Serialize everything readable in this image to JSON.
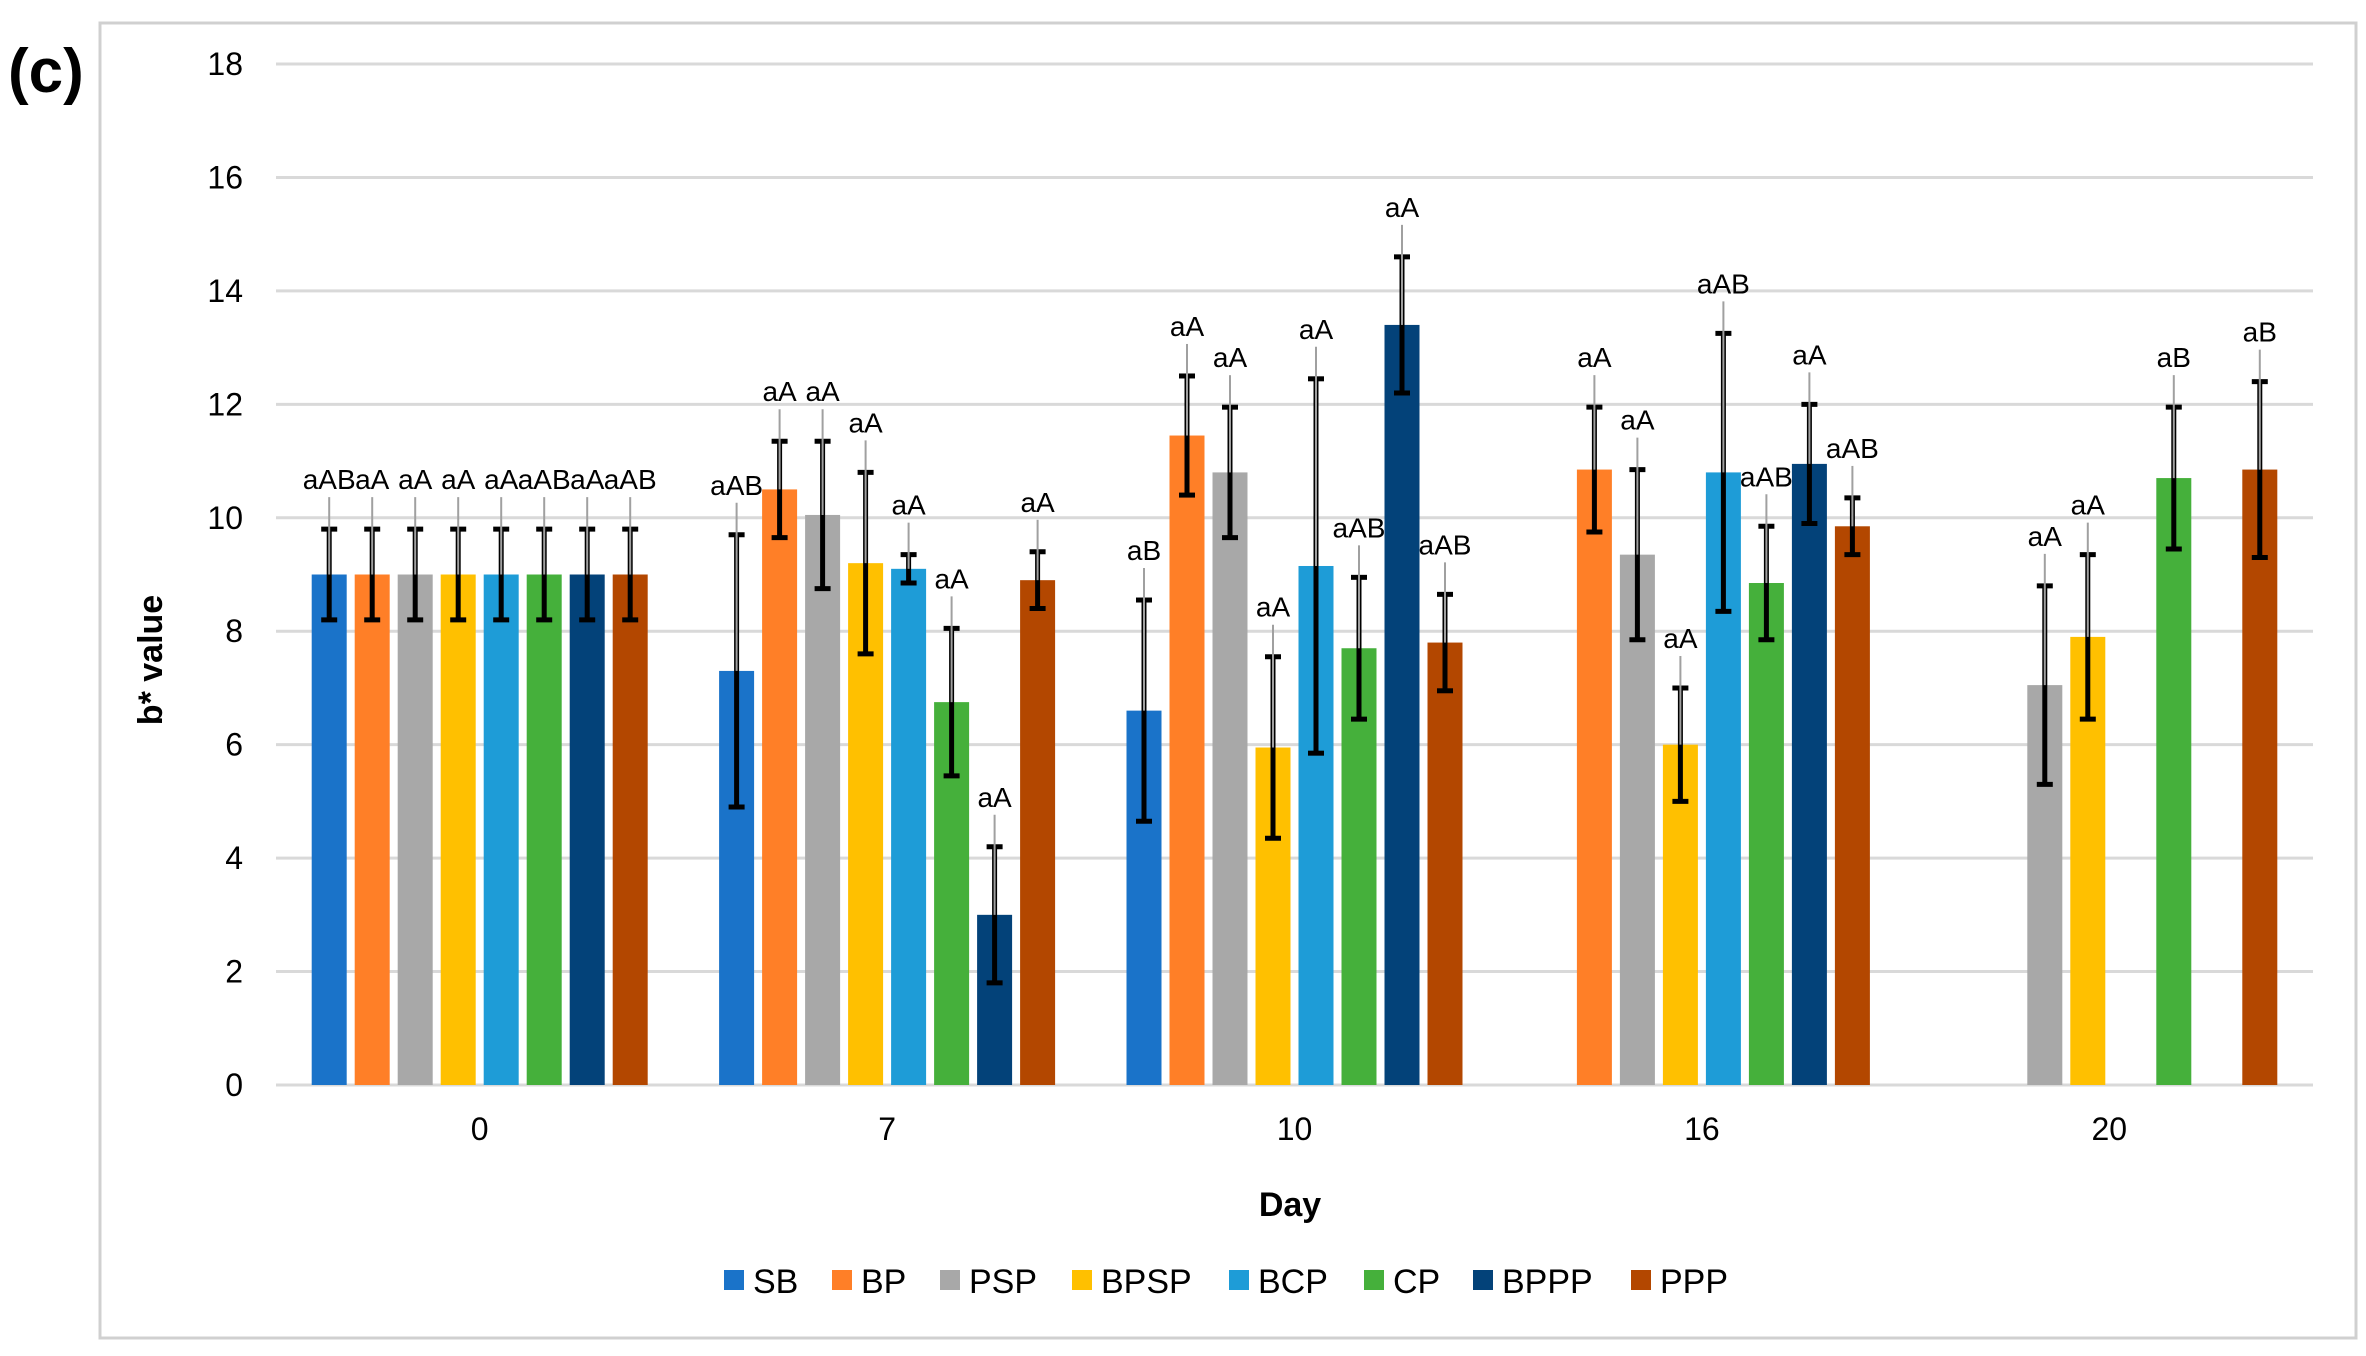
{
  "panel_label": "(c)",
  "chart_data": {
    "type": "bar",
    "title": "",
    "xlabel": "Day",
    "ylabel": "b* value",
    "ylim": [
      0,
      18
    ],
    "yticks": [
      0,
      2,
      4,
      6,
      8,
      10,
      12,
      14,
      16,
      18
    ],
    "grid": true,
    "legend_position": "bottom",
    "categories": [
      "0",
      "7",
      "10",
      "16",
      "20"
    ],
    "series": [
      {
        "name": "SB",
        "color": "#1a73c9",
        "values": [
          9.0,
          7.3,
          6.6,
          null,
          null
        ],
        "errors": [
          0.8,
          2.4,
          1.95,
          null,
          null
        ],
        "labels": [
          "aAB",
          "aAB",
          "aB",
          null,
          null
        ]
      },
      {
        "name": "BP",
        "color": "#ff7f27",
        "values": [
          9.0,
          10.5,
          11.45,
          10.85,
          null
        ],
        "errors": [
          0.8,
          0.85,
          1.05,
          1.1,
          null
        ],
        "labels": [
          "aA",
          "aA",
          "aA",
          "aA",
          null
        ]
      },
      {
        "name": "PSP",
        "color": "#a8a8a8",
        "values": [
          9.0,
          10.05,
          10.8,
          9.35,
          7.05
        ],
        "errors": [
          0.8,
          1.3,
          1.15,
          1.5,
          1.75
        ],
        "labels": [
          "aA",
          "aA",
          "aA",
          "aA",
          "aA"
        ]
      },
      {
        "name": "BPSP",
        "color": "#ffc000",
        "values": [
          9.0,
          9.2,
          5.95,
          6.0,
          7.9
        ],
        "errors": [
          0.8,
          1.6,
          1.6,
          1.0,
          1.45
        ],
        "labels": [
          "aA",
          "aA",
          "aA",
          "aA",
          "aA"
        ]
      },
      {
        "name": "BCP",
        "color": "#1e9cd7",
        "values": [
          9.0,
          9.1,
          9.15,
          10.8,
          null
        ],
        "errors": [
          0.8,
          0.25,
          3.3,
          2.45,
          null
        ],
        "labels": [
          "aA",
          "aA",
          "aA",
          "aAB",
          null
        ]
      },
      {
        "name": "CP",
        "color": "#45b03b",
        "values": [
          9.0,
          6.75,
          7.7,
          8.85,
          10.7
        ],
        "errors": [
          0.8,
          1.3,
          1.25,
          1.0,
          1.25
        ],
        "labels": [
          "aAB",
          "aA",
          "aAB",
          "aAB",
          "aB"
        ]
      },
      {
        "name": "BPPP",
        "color": "#034279",
        "values": [
          9.0,
          3.0,
          13.4,
          10.95,
          null
        ],
        "errors": [
          0.8,
          1.2,
          1.2,
          1.05,
          null
        ],
        "labels": [
          "aA",
          "aA",
          "aA",
          "aA",
          null
        ]
      },
      {
        "name": "PPP",
        "color": "#b34700",
        "values": [
          9.0,
          8.9,
          7.8,
          9.85,
          10.85
        ],
        "errors": [
          0.8,
          0.5,
          0.85,
          0.5,
          1.55
        ],
        "labels": [
          "aAB",
          "aA",
          "aAB",
          "aAB",
          "aB"
        ]
      }
    ]
  }
}
